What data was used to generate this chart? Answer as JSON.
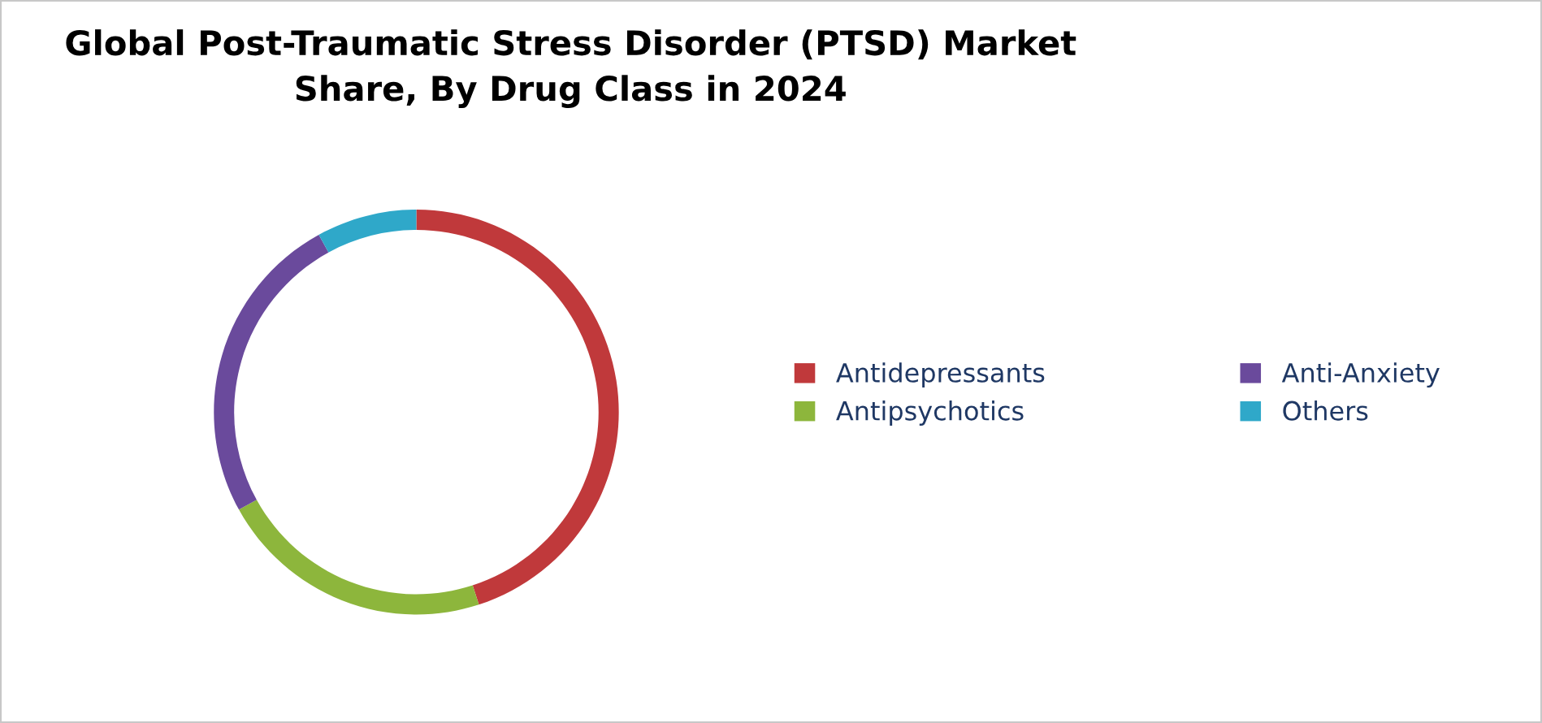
{
  "chart_data": {
    "type": "donut",
    "title": "Global Post-Traumatic Stress Disorder (PTSD) Market\nShare, By Drug Class in 2024",
    "categories": [
      "Antidepressants",
      "Antipsychotics",
      "Anti-Anxiety",
      "Others"
    ],
    "values": [
      45,
      22,
      25,
      8
    ],
    "colors": [
      "#c0393b",
      "#8db63c",
      "#6a4a9c",
      "#2fa8c9"
    ],
    "legend": "right"
  }
}
